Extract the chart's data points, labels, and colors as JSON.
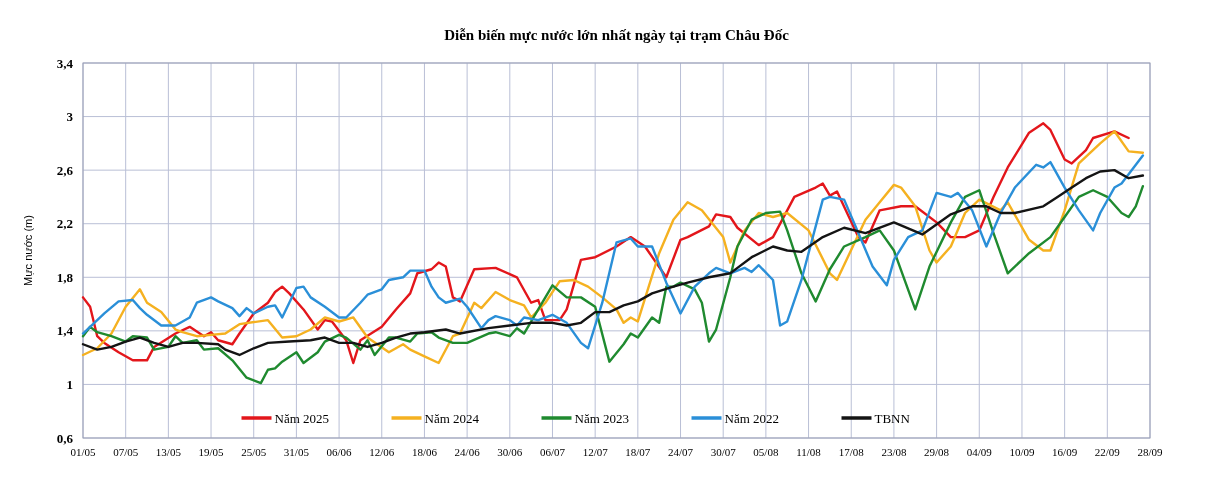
{
  "chart_data": {
    "type": "line",
    "title": "Diễn biến mực nước lớn nhất ngày tại trạm Châu Đốc",
    "ylabel": "Mực nước (m)",
    "xlim": [
      "--05-01",
      "--09-28"
    ],
    "ylim": [
      0.6,
      3.4
    ],
    "xticks": [
      {
        "value": "--05-01",
        "label": "01/05"
      },
      {
        "value": "--05-07",
        "label": "07/05"
      },
      {
        "value": "--05-13",
        "label": "13/05"
      },
      {
        "value": "--05-19",
        "label": "19/05"
      },
      {
        "value": "--05-25",
        "label": "25/05"
      },
      {
        "value": "--05-31",
        "label": "31/05"
      },
      {
        "value": "--06-06",
        "label": "06/06"
      },
      {
        "value": "--06-12",
        "label": "12/06"
      },
      {
        "value": "--06-18",
        "label": "18/06"
      },
      {
        "value": "--06-24",
        "label": "24/06"
      },
      {
        "value": "--06-30",
        "label": "30/06"
      },
      {
        "value": "--07-06",
        "label": "06/07"
      },
      {
        "value": "--07-12",
        "label": "12/07"
      },
      {
        "value": "--07-18",
        "label": "18/07"
      },
      {
        "value": "--07-24",
        "label": "24/07"
      },
      {
        "value": "--07-30",
        "label": "30/07"
      },
      {
        "value": "--08-05",
        "label": "05/08"
      },
      {
        "value": "--08-11",
        "label": "11/08"
      },
      {
        "value": "--08-17",
        "label": "17/08"
      },
      {
        "value": "--08-23",
        "label": "23/08"
      },
      {
        "value": "--08-29",
        "label": "29/08"
      },
      {
        "value": "--09-04",
        "label": "04/09"
      },
      {
        "value": "--09-10",
        "label": "10/09"
      },
      {
        "value": "--09-16",
        "label": "16/09"
      },
      {
        "value": "--09-22",
        "label": "22/09"
      },
      {
        "value": "--09-28",
        "label": "28/09"
      }
    ],
    "yticks": [
      {
        "value": 0.6,
        "label": "0,6"
      },
      1,
      {
        "value": 1.4,
        "label": "1,4"
      },
      {
        "value": 1.8,
        "label": "1,8"
      },
      {
        "value": 2.2,
        "label": "2,2"
      },
      {
        "value": 2.6,
        "label": "2,6"
      },
      3,
      {
        "value": 3.4,
        "label": "3,4"
      }
    ],
    "grid": true,
    "legend": "bottom",
    "series": [
      {
        "name": "Năm 2025",
        "color": "#e3161b",
        "x": [
          "--05-01",
          "--05-02",
          "--05-03",
          "--05-04",
          "--05-06",
          "--05-08",
          "--05-10",
          "--05-11",
          "--05-14",
          "--05-16",
          "--05-18",
          "--05-19",
          "--05-20",
          "--05-22",
          "--05-23",
          "--05-25",
          "--05-27",
          "--05-28",
          "--05-29",
          "--05-30",
          "--06-01",
          "--06-03",
          "--06-04",
          "--06-05",
          "--06-07",
          "--06-08",
          "--06-09",
          "--06-12",
          "--06-14",
          "--06-16",
          "--06-17",
          "--06-19",
          "--06-20",
          "--06-21",
          "--06-22",
          "--06-23",
          "--06-25",
          "--06-28",
          "--07-01",
          "--07-03",
          "--07-04",
          "--07-05",
          "--07-07",
          "--07-08",
          "--07-10",
          "--07-12",
          "--07-15",
          "--07-17",
          "--07-19",
          "--07-22",
          "--07-24",
          "--07-25",
          "--07-28",
          "--07-29",
          "--07-31",
          "--08-01",
          "--08-04",
          "--08-06",
          "--08-08",
          "--08-09",
          "--08-12",
          "--08-13",
          "--08-14",
          "--08-15",
          "--08-18",
          "--08-19",
          "--08-21",
          "--08-24",
          "--08-26",
          "--08-29",
          "--08-31",
          "--09-02",
          "--09-04",
          "--09-06",
          "--09-08",
          "--09-11",
          "--09-13",
          "--09-14",
          "--09-16",
          "--09-17",
          "--09-19",
          "--09-20",
          "--09-23",
          "--09-25"
        ],
        "values": [
          1.65,
          1.58,
          1.36,
          1.31,
          1.24,
          1.18,
          1.18,
          1.28,
          1.38,
          1.43,
          1.36,
          1.39,
          1.33,
          1.3,
          1.38,
          1.53,
          1.61,
          1.69,
          1.73,
          1.68,
          1.56,
          1.41,
          1.48,
          1.47,
          1.33,
          1.16,
          1.33,
          1.43,
          1.56,
          1.68,
          1.83,
          1.86,
          1.91,
          1.88,
          1.65,
          1.62,
          1.86,
          1.87,
          1.8,
          1.61,
          1.63,
          1.48,
          1.48,
          1.56,
          1.93,
          1.95,
          2.03,
          2.1,
          2.03,
          1.8,
          2.08,
          2.1,
          2.18,
          2.27,
          2.25,
          2.17,
          2.04,
          2.1,
          2.3,
          2.4,
          2.47,
          2.5,
          2.41,
          2.44,
          2.1,
          2.06,
          2.3,
          2.33,
          2.33,
          2.21,
          2.1,
          2.1,
          2.15,
          2.4,
          2.62,
          2.88,
          2.95,
          2.9,
          2.68,
          2.65,
          2.75,
          2.84,
          2.89,
          2.84
        ]
      },
      {
        "name": "Năm 2024",
        "color": "#f5b120",
        "x": [
          "--05-01",
          "--05-03",
          "--05-05",
          "--05-07",
          "--05-09",
          "--05-10",
          "--05-12",
          "--05-14",
          "--05-15",
          "--05-17",
          "--05-19",
          "--05-21",
          "--05-23",
          "--05-27",
          "--05-29",
          "--05-31",
          "--06-02",
          "--06-04",
          "--06-06",
          "--06-08",
          "--06-10",
          "--06-13",
          "--06-15",
          "--06-16",
          "--06-18",
          "--06-20",
          "--06-22",
          "--06-23",
          "--06-25",
          "--06-26",
          "--06-28",
          "--06-30",
          "--07-02",
          "--07-03",
          "--07-05",
          "--07-07",
          "--07-09",
          "--07-11",
          "--07-13",
          "--07-15",
          "--07-16",
          "--07-17",
          "--07-18",
          "--07-21",
          "--07-23",
          "--07-25",
          "--07-27",
          "--07-30",
          "--07-31",
          "--08-02",
          "--08-04",
          "--08-06",
          "--08-08",
          "--08-11",
          "--08-14",
          "--08-15",
          "--08-19",
          "--08-21",
          "--08-23",
          "--08-24",
          "--08-26",
          "--08-28",
          "--08-29",
          "--08-31",
          "--09-02",
          "--09-04",
          "--09-07",
          "--09-08",
          "--09-11",
          "--09-13",
          "--09-14",
          "--09-16",
          "--09-18",
          "--09-21",
          "--09-23",
          "--09-25",
          "--09-27"
        ],
        "values": [
          1.22,
          1.27,
          1.38,
          1.58,
          1.71,
          1.61,
          1.54,
          1.41,
          1.39,
          1.36,
          1.37,
          1.38,
          1.45,
          1.48,
          1.35,
          1.36,
          1.41,
          1.5,
          1.47,
          1.5,
          1.35,
          1.24,
          1.3,
          1.26,
          1.21,
          1.16,
          1.36,
          1.38,
          1.61,
          1.57,
          1.69,
          1.63,
          1.59,
          1.5,
          1.61,
          1.77,
          1.78,
          1.73,
          1.65,
          1.56,
          1.46,
          1.5,
          1.47,
          1.98,
          2.23,
          2.36,
          2.3,
          2.1,
          1.91,
          2.15,
          2.28,
          2.25,
          2.28,
          2.15,
          1.83,
          1.78,
          2.23,
          2.36,
          2.49,
          2.47,
          2.33,
          2.0,
          1.91,
          2.03,
          2.28,
          2.38,
          2.3,
          2.36,
          2.08,
          2.0,
          2.0,
          2.3,
          2.65,
          2.8,
          2.89,
          2.74,
          2.73
        ]
      },
      {
        "name": "Năm 2023",
        "color": "#1f8a2f",
        "x": [
          "--05-01",
          "--05-02",
          "--05-03",
          "--05-05",
          "--05-07",
          "--05-08",
          "--05-10",
          "--05-11",
          "--05-13",
          "--05-14",
          "--05-15",
          "--05-17",
          "--05-18",
          "--05-20",
          "--05-22",
          "--05-24",
          "--05-26",
          "--05-27",
          "--05-28",
          "--05-29",
          "--05-31",
          "--06-01",
          "--06-03",
          "--06-04",
          "--06-06",
          "--06-07",
          "--06-09",
          "--06-10",
          "--06-11",
          "--06-13",
          "--06-14",
          "--06-16",
          "--06-17",
          "--06-19",
          "--06-20",
          "--06-22",
          "--06-24",
          "--06-27",
          "--06-28",
          "--06-30",
          "--07-01",
          "--07-02",
          "--07-04",
          "--07-06",
          "--07-08",
          "--07-10",
          "--07-12",
          "--07-14",
          "--07-16",
          "--07-17",
          "--07-18",
          "--07-20",
          "--07-21",
          "--07-22",
          "--07-23",
          "--07-24",
          "--07-26",
          "--07-27",
          "--07-28",
          "--07-29",
          "--07-31",
          "--08-01",
          "--08-03",
          "--08-05",
          "--08-07",
          "--08-08",
          "--08-10",
          "--08-12",
          "--08-14",
          "--08-16",
          "--08-19",
          "--08-21",
          "--08-23",
          "--08-26",
          "--08-28",
          "--08-31",
          "--09-02",
          "--09-04",
          "--09-06",
          "--09-08",
          "--09-11",
          "--09-14",
          "--09-16",
          "--09-18",
          "--09-20",
          "--09-22",
          "--09-24",
          "--09-25",
          "--09-26",
          "--09-27"
        ],
        "values": [
          1.36,
          1.43,
          1.39,
          1.36,
          1.32,
          1.36,
          1.35,
          1.26,
          1.28,
          1.36,
          1.31,
          1.33,
          1.26,
          1.27,
          1.18,
          1.05,
          1.01,
          1.11,
          1.12,
          1.17,
          1.24,
          1.16,
          1.24,
          1.32,
          1.37,
          1.35,
          1.26,
          1.33,
          1.22,
          1.35,
          1.35,
          1.32,
          1.38,
          1.39,
          1.35,
          1.31,
          1.31,
          1.38,
          1.39,
          1.36,
          1.42,
          1.38,
          1.56,
          1.74,
          1.65,
          1.65,
          1.58,
          1.17,
          1.3,
          1.38,
          1.35,
          1.5,
          1.46,
          1.73,
          1.73,
          1.76,
          1.71,
          1.61,
          1.32,
          1.41,
          1.8,
          2.03,
          2.23,
          2.28,
          2.29,
          2.15,
          1.83,
          1.62,
          1.86,
          2.03,
          2.1,
          2.15,
          2.0,
          1.56,
          1.88,
          2.21,
          2.4,
          2.45,
          2.13,
          1.83,
          1.98,
          2.1,
          2.25,
          2.4,
          2.45,
          2.4,
          2.28,
          2.25,
          2.33,
          2.48
        ]
      },
      {
        "name": "Năm 2022",
        "color": "#2a8fd8",
        "x": [
          "--05-01",
          "--05-02",
          "--05-04",
          "--05-06",
          "--05-08",
          "--05-09",
          "--05-10",
          "--05-12",
          "--05-14",
          "--05-16",
          "--05-17",
          "--05-19",
          "--05-20",
          "--05-22",
          "--05-23",
          "--05-24",
          "--05-25",
          "--05-27",
          "--05-28",
          "--05-29",
          "--05-31",
          "--06-01",
          "--06-02",
          "--06-04",
          "--06-06",
          "--06-07",
          "--06-09",
          "--06-10",
          "--06-12",
          "--06-13",
          "--06-15",
          "--06-16",
          "--06-18",
          "--06-19",
          "--06-20",
          "--06-21",
          "--06-23",
          "--06-24",
          "--06-26",
          "--06-27",
          "--06-28",
          "--06-30",
          "--07-01",
          "--07-02",
          "--07-04",
          "--07-06",
          "--07-08",
          "--07-10",
          "--07-11",
          "--07-13",
          "--07-15",
          "--07-17",
          "--07-18",
          "--07-20",
          "--07-22",
          "--07-24",
          "--07-26",
          "--07-28",
          "--07-29",
          "--07-31",
          "--08-02",
          "--08-03",
          "--08-04",
          "--08-06",
          "--08-07",
          "--08-08",
          "--08-10",
          "--08-13",
          "--08-14",
          "--08-16",
          "--08-18",
          "--08-20",
          "--08-22",
          "--08-23",
          "--08-25",
          "--08-27",
          "--08-29",
          "--08-31",
          "--09-01",
          "--09-03",
          "--09-05",
          "--09-07",
          "--09-09",
          "--09-12",
          "--09-13",
          "--09-14",
          "--09-16",
          "--09-18",
          "--09-20",
          "--09-21",
          "--09-23",
          "--09-24",
          "--09-27"
        ],
        "values": [
          1.38,
          1.43,
          1.53,
          1.62,
          1.63,
          1.57,
          1.52,
          1.44,
          1.44,
          1.5,
          1.61,
          1.65,
          1.62,
          1.57,
          1.51,
          1.57,
          1.53,
          1.58,
          1.59,
          1.5,
          1.72,
          1.73,
          1.65,
          1.58,
          1.5,
          1.5,
          1.61,
          1.67,
          1.71,
          1.78,
          1.8,
          1.85,
          1.85,
          1.73,
          1.65,
          1.61,
          1.64,
          1.58,
          1.42,
          1.48,
          1.51,
          1.48,
          1.44,
          1.5,
          1.48,
          1.52,
          1.46,
          1.31,
          1.27,
          1.61,
          2.06,
          2.09,
          2.03,
          2.03,
          1.76,
          1.53,
          1.73,
          1.83,
          1.87,
          1.83,
          1.87,
          1.84,
          1.89,
          1.78,
          1.44,
          1.47,
          1.78,
          2.38,
          2.4,
          2.38,
          2.13,
          1.88,
          1.74,
          1.93,
          2.1,
          2.15,
          2.43,
          2.4,
          2.43,
          2.3,
          2.03,
          2.28,
          2.47,
          2.64,
          2.62,
          2.66,
          2.47,
          2.3,
          2.15,
          2.28,
          2.47,
          2.5,
          2.71
        ]
      },
      {
        "name": "TBNN",
        "color": "#141414",
        "x": [
          "--05-01",
          "--05-03",
          "--05-05",
          "--05-07",
          "--05-09",
          "--05-11",
          "--05-13",
          "--05-15",
          "--05-17",
          "--05-20",
          "--05-21",
          "--05-23",
          "--05-25",
          "--05-27",
          "--05-30",
          "--06-02",
          "--06-04",
          "--06-06",
          "--06-08",
          "--06-10",
          "--06-12",
          "--06-14",
          "--06-16",
          "--06-18",
          "--06-21",
          "--06-23",
          "--06-27",
          "--06-30",
          "--07-03",
          "--07-06",
          "--07-08",
          "--07-10",
          "--07-12",
          "--07-14",
          "--07-16",
          "--07-18",
          "--07-20",
          "--07-23",
          "--07-25",
          "--07-28",
          "--07-31",
          "--08-01",
          "--08-03",
          "--08-06",
          "--08-08",
          "--08-10",
          "--08-13",
          "--08-16",
          "--08-19",
          "--08-23",
          "--08-27",
          "--08-31",
          "--09-03",
          "--09-05",
          "--09-07",
          "--09-09",
          "--09-13",
          "--09-15",
          "--09-17",
          "--09-19",
          "--09-21",
          "--09-23",
          "--09-25",
          "--09-27"
        ],
        "values": [
          1.3,
          1.26,
          1.28,
          1.32,
          1.35,
          1.31,
          1.28,
          1.31,
          1.31,
          1.3,
          1.26,
          1.22,
          1.27,
          1.31,
          1.32,
          1.33,
          1.35,
          1.31,
          1.31,
          1.28,
          1.31,
          1.35,
          1.38,
          1.39,
          1.41,
          1.38,
          1.42,
          1.44,
          1.46,
          1.46,
          1.44,
          1.46,
          1.54,
          1.54,
          1.59,
          1.62,
          1.68,
          1.73,
          1.76,
          1.8,
          1.83,
          1.87,
          1.95,
          2.03,
          2.0,
          1.99,
          2.1,
          2.17,
          2.13,
          2.21,
          2.12,
          2.27,
          2.33,
          2.33,
          2.28,
          2.28,
          2.33,
          2.4,
          2.47,
          2.54,
          2.59,
          2.6,
          2.54,
          2.56
        ]
      }
    ]
  }
}
